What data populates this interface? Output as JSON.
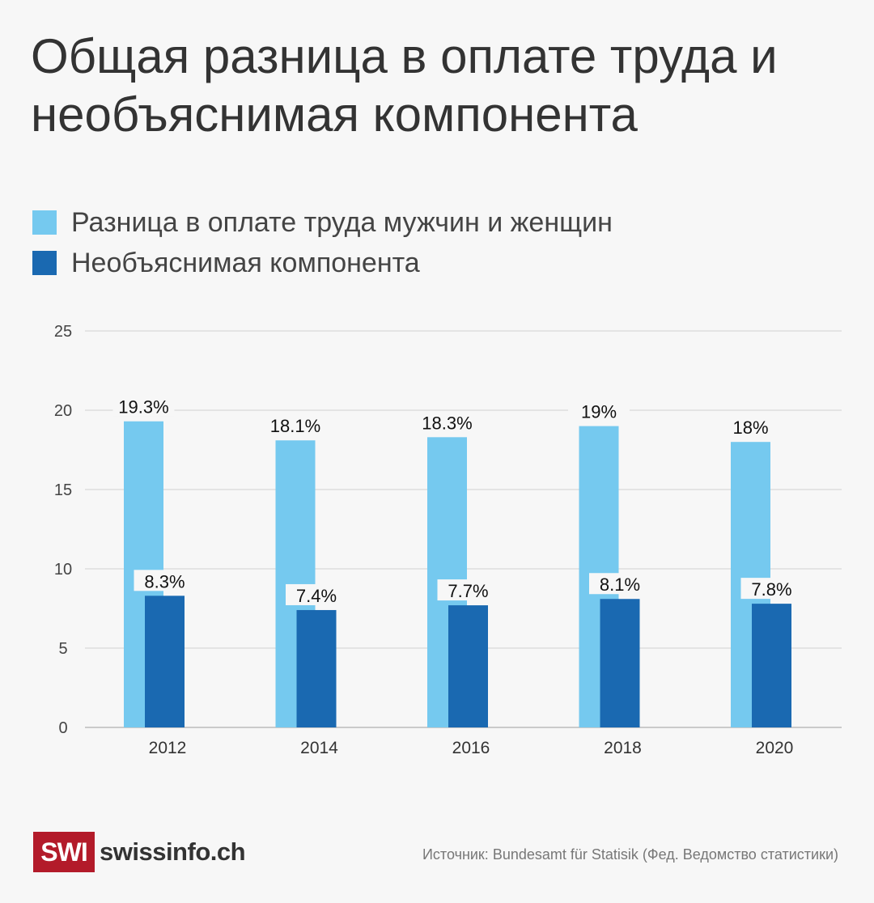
{
  "chart_data": {
    "type": "bar",
    "title": "Общая разница в оплате труда и необъяснимая компонента",
    "categories": [
      "2012",
      "2014",
      "2016",
      "2018",
      "2020"
    ],
    "series": [
      {
        "name": "Разница в оплате труда мужчин и женщин",
        "values": [
          19.3,
          18.1,
          18.3,
          19,
          18
        ],
        "labels": [
          "19.3%",
          "18.1%",
          "18.3%",
          "19%",
          "18%"
        ],
        "color": "#75c9ef"
      },
      {
        "name": "Необъяснимая компонента",
        "values": [
          8.3,
          7.4,
          7.7,
          8.1,
          7.8
        ],
        "labels": [
          "8.3%",
          "7.4%",
          "7.7%",
          "8.1%",
          "7.8%"
        ],
        "color": "#1a69b1"
      }
    ],
    "ylim": [
      0,
      25
    ],
    "yticks": [
      "0",
      "5",
      "10",
      "15",
      "20",
      "25"
    ],
    "xlabel": "",
    "ylabel": "",
    "grid": true,
    "legend": "top-left"
  },
  "footer": {
    "logo_mark": "SWI",
    "brand": "swissinfo.ch",
    "source": "Источник: Bundesamt für Statisik (Фед. Ведомство статистики)"
  }
}
